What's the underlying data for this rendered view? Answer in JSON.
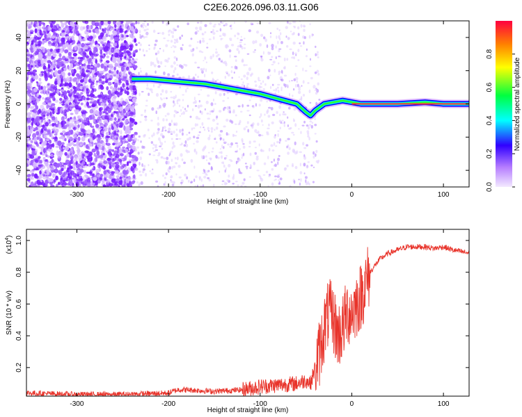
{
  "title": "C2E6.2026.096.03.11.G06",
  "chart_data": [
    {
      "type": "heatmap",
      "xlabel": "Height of straight line (km)",
      "ylabel": "Frequency (Hz)",
      "xlim": [
        -355,
        128
      ],
      "ylim": [
        -50,
        50
      ],
      "x_ticks": [
        -300,
        -200,
        -100,
        0,
        100
      ],
      "y_ticks": [
        -40,
        -20,
        0,
        20,
        40
      ],
      "colorbar": {
        "label": "Normalized spectral amplitude",
        "range": [
          0,
          1
        ],
        "ticks": [
          "0.0",
          "0.2",
          "0.4",
          "0.6",
          "0.8"
        ],
        "colormap": [
          "#f3eaff",
          "#9b30ff",
          "#0000ff",
          "#00ffff",
          "#00ff00",
          "#ffff00",
          "#ff0000"
        ]
      },
      "ridge": {
        "x": [
          -240,
          -220,
          -200,
          -180,
          -160,
          -140,
          -120,
          -100,
          -80,
          -60,
          -50,
          -45,
          -40,
          -30,
          -20,
          -10,
          0,
          10,
          50,
          80,
          100,
          128
        ],
        "y": [
          15,
          15,
          14,
          13,
          12,
          10,
          8,
          6,
          3,
          0,
          -5,
          -7,
          -4,
          0,
          1,
          2,
          1,
          0,
          0,
          1,
          0,
          0
        ]
      }
    },
    {
      "type": "line",
      "xlabel": "Height of straight line (km)",
      "ylabel": "SNR (10 * v/v)",
      "ylabel_multiplier": "(x10",
      "ylabel_exponent": "4",
      "ylabel_multiplier_close": ")",
      "xlim": [
        -355,
        128
      ],
      "ylim": [
        0.02,
        1.07
      ],
      "x_ticks": [
        -300,
        -200,
        -100,
        0,
        100
      ],
      "y_ticks": [
        "0.2",
        "0.4",
        "0.6",
        "0.8",
        "1.0"
      ],
      "series": [
        {
          "color": "#e8332a",
          "x": [
            -355,
            -300,
            -250,
            -200,
            -190,
            -180,
            -150,
            -120,
            -100,
            -80,
            -60,
            -50,
            -45,
            -40,
            -35,
            -30,
            -25,
            -20,
            -15,
            -10,
            -5,
            0,
            5,
            10,
            20,
            30,
            40,
            60,
            80,
            90,
            100,
            110,
            128
          ],
          "y": [
            0.04,
            0.03,
            0.03,
            0.04,
            0.06,
            0.06,
            0.05,
            0.06,
            0.08,
            0.09,
            0.1,
            0.12,
            0.1,
            0.2,
            0.3,
            0.45,
            0.55,
            0.5,
            0.4,
            0.45,
            0.55,
            0.55,
            0.6,
            0.65,
            0.8,
            0.88,
            0.92,
            0.96,
            0.96,
            0.95,
            0.96,
            0.94,
            0.92
          ]
        }
      ]
    }
  ]
}
